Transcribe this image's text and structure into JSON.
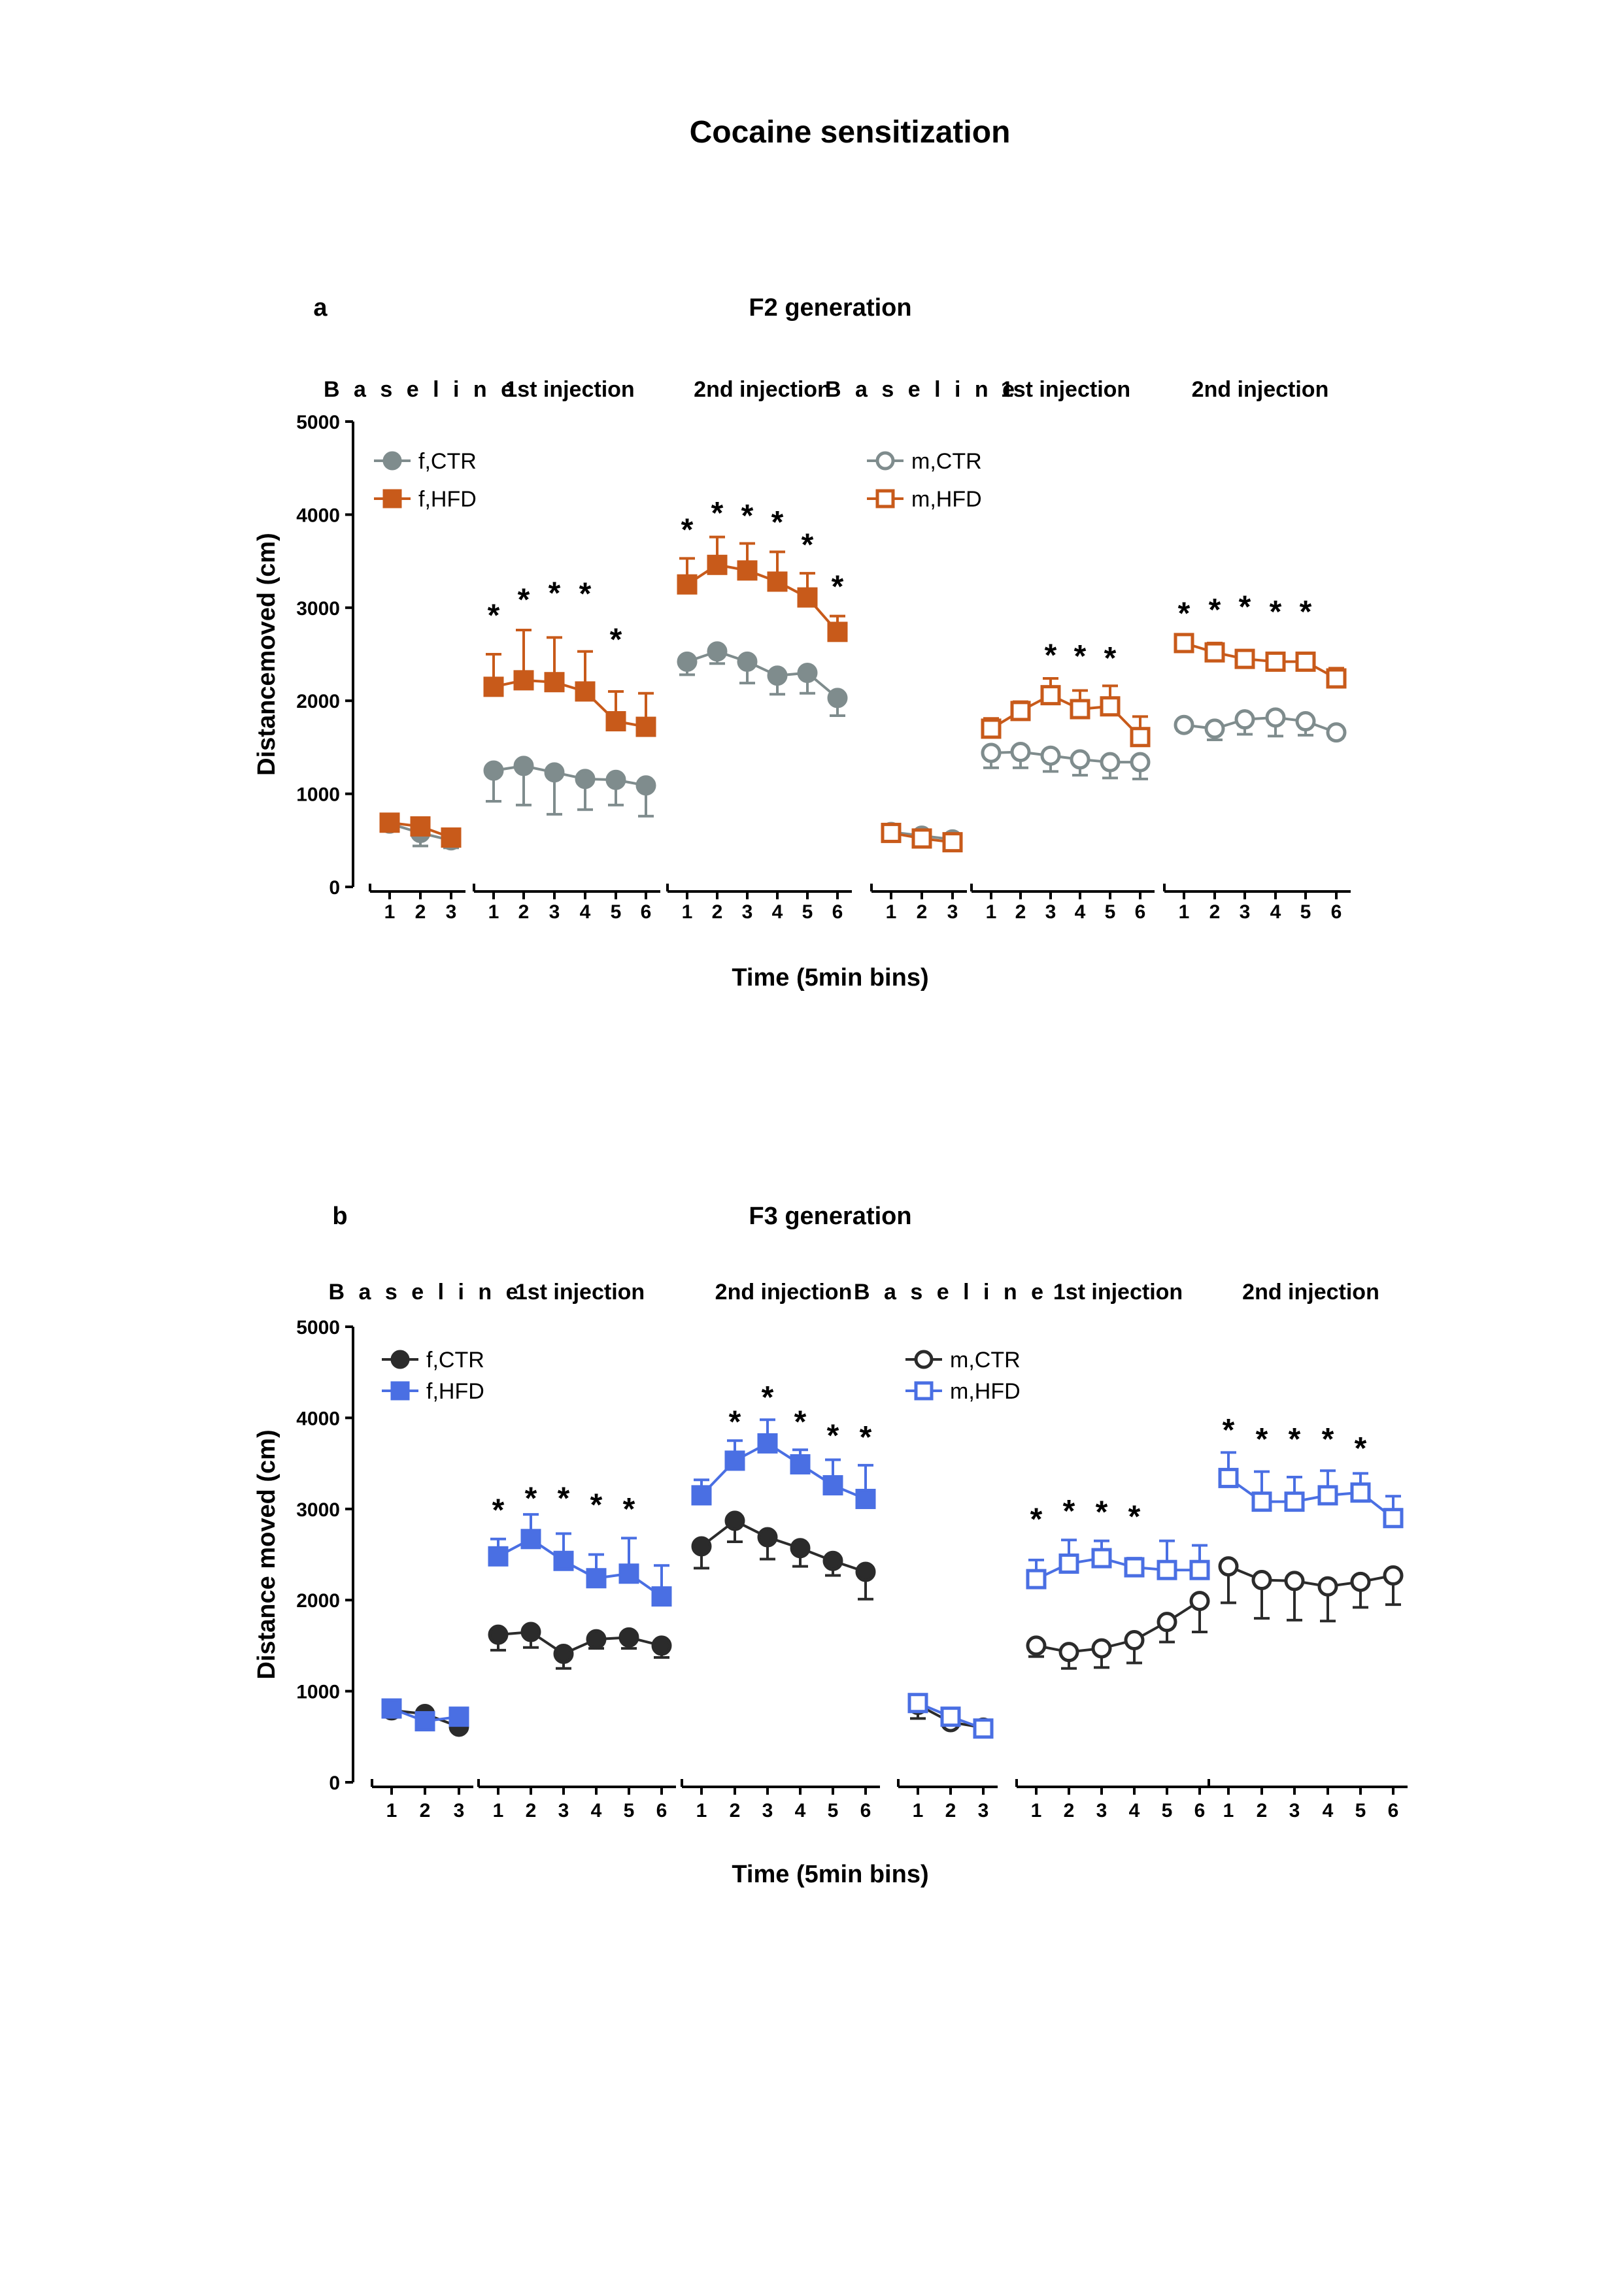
{
  "title": "Cocaine sensitization",
  "chart_data": [
    {
      "type": "line",
      "panel": "a",
      "title": "F2 generation",
      "xlabel": "Time (5min bins)",
      "ylabel": "Distancemoved (cm)",
      "ylim": [
        0,
        5000
      ],
      "yticks": [
        0,
        1000,
        2000,
        3000,
        4000,
        5000
      ],
      "segments": [
        {
          "label": "B a s e l i n e",
          "spaced": true,
          "x": [
            1,
            2,
            3
          ],
          "sex": "f"
        },
        {
          "label": "1st injection",
          "x": [
            1,
            2,
            3,
            4,
            5,
            6
          ],
          "sex": "f"
        },
        {
          "label": "2nd injection",
          "x": [
            1,
            2,
            3,
            4,
            5,
            6
          ],
          "sex": "f"
        },
        {
          "label": "B a s e l i n e",
          "spaced": true,
          "x": [
            1,
            2,
            3
          ],
          "sex": "m"
        },
        {
          "label": "1st injection",
          "x": [
            1,
            2,
            3,
            4,
            5,
            6
          ],
          "sex": "m"
        },
        {
          "label": "2nd injection",
          "x": [
            1,
            2,
            3,
            4,
            5,
            6
          ],
          "sex": "m"
        }
      ],
      "legend": [
        {
          "name": "f,CTR",
          "color": "#7f8c8d",
          "marker": "circle",
          "filled": true
        },
        {
          "name": "f,HFD",
          "color": "#c85a1a",
          "marker": "square",
          "filled": true
        },
        {
          "name": "m,CTR",
          "color": "#7f8c8d",
          "marker": "circle",
          "filled": false
        },
        {
          "name": "m,HFD",
          "color": "#c85a1a",
          "marker": "square",
          "filled": false
        }
      ],
      "series": [
        {
          "name": "f,CTR",
          "segments": [
            {
              "mean": [
                680,
                580,
                500
              ],
              "err": [
                60,
                140,
                80
              ],
              "errdir": "down"
            },
            {
              "mean": [
                1250,
                1300,
                1230,
                1160,
                1150,
                1090
              ],
              "err": [
                330,
                420,
                450,
                330,
                270,
                330
              ],
              "errdir": "down"
            },
            {
              "mean": [
                2420,
                2530,
                2420,
                2270,
                2300,
                2030
              ],
              "err": [
                140,
                130,
                230,
                200,
                220,
                190
              ],
              "errdir": "down"
            }
          ]
        },
        {
          "name": "f,HFD",
          "segments": [
            {
              "mean": [
                690,
                650,
                530
              ],
              "err": [
                40,
                50,
                40
              ],
              "errdir": "up"
            },
            {
              "mean": [
                2150,
                2220,
                2200,
                2100,
                1780,
                1720
              ],
              "err": [
                350,
                540,
                480,
                430,
                320,
                360
              ],
              "errdir": "up"
            },
            {
              "mean": [
                3250,
                3460,
                3400,
                3280,
                3110,
                2740
              ],
              "err": [
                280,
                300,
                290,
                320,
                260,
                170
              ],
              "errdir": "up"
            }
          ]
        },
        {
          "name": "m,CTR",
          "segments": [
            {
              "mean": [
                590,
                550,
                510
              ],
              "err": [
                40,
                40,
                40
              ],
              "errdir": "down"
            },
            {
              "mean": [
                1440,
                1450,
                1410,
                1370,
                1340,
                1340
              ],
              "err": [
                160,
                170,
                170,
                170,
                170,
                180
              ],
              "errdir": "down"
            },
            {
              "mean": [
                1740,
                1700,
                1800,
                1820,
                1780,
                1660
              ],
              "err": [
                60,
                120,
                160,
                200,
                150,
                60
              ],
              "errdir": "down"
            }
          ]
        },
        {
          "name": "m,HFD",
          "segments": [
            {
              "mean": [
                580,
                520,
                480
              ],
              "err": [
                30,
                30,
                30
              ],
              "errdir": "up"
            },
            {
              "mean": [
                1700,
                1890,
                2060,
                1910,
                1940,
                1610
              ],
              "err": [
                110,
                100,
                180,
                200,
                220,
                220
              ],
              "errdir": "up"
            },
            {
              "mean": [
                2620,
                2520,
                2450,
                2420,
                2420,
                2240
              ],
              "err": [
                40,
                100,
                60,
                80,
                70,
                110
              ],
              "errdir": "up"
            }
          ]
        }
      ],
      "significance": [
        {
          "segment": 1,
          "x": [
            1,
            2,
            3,
            4,
            5
          ],
          "y": [
            2960,
            3130,
            3200,
            3190,
            2700
          ]
        },
        {
          "segment": 2,
          "x": [
            1,
            2,
            3,
            4,
            5,
            6
          ],
          "y": [
            3880,
            4060,
            4030,
            3960,
            3720,
            3270
          ]
        },
        {
          "segment": 4,
          "x": [
            3,
            4,
            5
          ],
          "y": [
            2530,
            2520,
            2500
          ]
        },
        {
          "segment": 5,
          "x": [
            1,
            2,
            3,
            4,
            5
          ],
          "y": [
            2980,
            3020,
            3050,
            3000,
            3000
          ]
        }
      ]
    },
    {
      "type": "line",
      "panel": "b",
      "title": "F3 generation",
      "xlabel": "Time (5min bins)",
      "ylabel": "Distance moved (cm)",
      "ylim": [
        0,
        5000
      ],
      "yticks": [
        0,
        1000,
        2000,
        3000,
        4000,
        5000
      ],
      "segments": [
        {
          "label": "B a s e l i n e",
          "spaced": true,
          "x": [
            1,
            2,
            3
          ],
          "sex": "f"
        },
        {
          "label": "1st injection",
          "x": [
            1,
            2,
            3,
            4,
            5,
            6
          ],
          "sex": "f"
        },
        {
          "label": "2nd injection",
          "x": [
            1,
            2,
            3,
            4,
            5,
            6
          ],
          "sex": "f"
        },
        {
          "label": "B a s e l i n e",
          "spaced": true,
          "x": [
            1,
            2,
            3
          ],
          "sex": "m"
        },
        {
          "label": "1st injection",
          "x": [
            1,
            2,
            3,
            4,
            5,
            6
          ],
          "sex": "m"
        },
        {
          "label": "2nd injection",
          "x": [
            1,
            2,
            3,
            4,
            5,
            6
          ],
          "sex": "m"
        }
      ],
      "legend": [
        {
          "name": "f,CTR",
          "color": "#2b2b2b",
          "marker": "circle",
          "filled": true
        },
        {
          "name": "f,HFD",
          "color": "#4a6fe3",
          "marker": "square",
          "filled": true
        },
        {
          "name": "m,CTR",
          "color": "#2b2b2b",
          "marker": "circle",
          "filled": false
        },
        {
          "name": "m,HFD",
          "color": "#4a6fe3",
          "marker": "square",
          "filled": false
        }
      ],
      "series": [
        {
          "name": "f,CTR",
          "segments": [
            {
              "mean": [
                790,
                750,
                610
              ],
              "err": [
                40,
                40,
                40
              ],
              "errdir": "down"
            },
            {
              "mean": [
                1620,
                1650,
                1410,
                1570,
                1590,
                1500
              ],
              "err": [
                170,
                170,
                160,
                100,
                120,
                130
              ],
              "errdir": "down"
            },
            {
              "mean": [
                2590,
                2870,
                2690,
                2570,
                2430,
                2310
              ],
              "err": [
                240,
                230,
                240,
                200,
                160,
                300
              ],
              "errdir": "down"
            }
          ]
        },
        {
          "name": "f,HFD",
          "segments": [
            {
              "mean": [
                810,
                670,
                720
              ],
              "err": [
                40,
                40,
                40
              ],
              "errdir": "up"
            },
            {
              "mean": [
                2480,
                2670,
                2430,
                2240,
                2290,
                2040
              ],
              "err": [
                190,
                270,
                300,
                260,
                390,
                340
              ],
              "errdir": "up"
            },
            {
              "mean": [
                3150,
                3530,
                3720,
                3490,
                3260,
                3110
              ],
              "err": [
                170,
                220,
                260,
                160,
                280,
                370
              ],
              "errdir": "up"
            }
          ]
        },
        {
          "name": "m,CTR",
          "segments": [
            {
              "mean": [
                850,
                660,
                600
              ],
              "err": [
                150,
                60,
                80
              ],
              "errdir": "down"
            },
            {
              "mean": [
                1500,
                1430,
                1470,
                1560,
                1760,
                1990
              ],
              "err": [
                120,
                180,
                210,
                250,
                220,
                340
              ],
              "errdir": "down"
            },
            {
              "mean": [
                2370,
                2220,
                2210,
                2150,
                2200,
                2270
              ],
              "err": [
                400,
                420,
                430,
                380,
                280,
                320
              ],
              "errdir": "down"
            }
          ]
        },
        {
          "name": "m,HFD",
          "segments": [
            {
              "mean": [
                870,
                720,
                590
              ],
              "err": [
                40,
                40,
                40
              ],
              "errdir": "up"
            },
            {
              "mean": [
                2230,
                2400,
                2460,
                2360,
                2330,
                2330
              ],
              "err": [
                210,
                260,
                190,
                100,
                320,
                270
              ],
              "errdir": "up"
            },
            {
              "mean": [
                3340,
                3080,
                3080,
                3150,
                3180,
                2900
              ],
              "err": [
                280,
                330,
                270,
                270,
                210,
                240
              ],
              "errdir": "up"
            }
          ]
        }
      ],
      "significance": [
        {
          "segment": 1,
          "x": [
            1,
            2,
            3,
            4,
            5
          ],
          "y": [
            3030,
            3160,
            3160,
            3090,
            3040
          ]
        },
        {
          "segment": 2,
          "x": [
            2,
            3,
            4,
            5,
            6
          ],
          "y": [
            4000,
            4270,
            4000,
            3850,
            3830
          ]
        },
        {
          "segment": 4,
          "x": [
            1,
            2,
            3,
            4
          ],
          "y": [
            2930,
            3020,
            3010,
            2960
          ]
        },
        {
          "segment": 5,
          "x": [
            1,
            2,
            3,
            4,
            5
          ],
          "y": [
            3910,
            3810,
            3810,
            3810,
            3710
          ]
        }
      ]
    }
  ]
}
